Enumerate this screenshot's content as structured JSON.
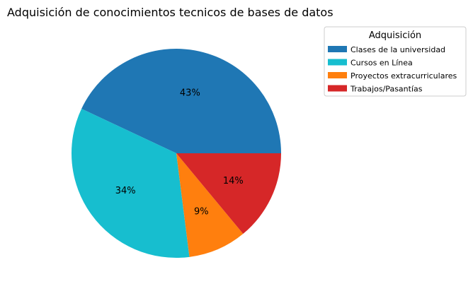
{
  "chart_data": {
    "type": "pie",
    "title": "Adquisición de conocimientos tecnicos de bases de datos",
    "legend_title": "Adquisición",
    "legend_position": "top-right",
    "start_angle_deg": 0,
    "direction": "counterclockwise",
    "slices": [
      {
        "label": "Clases de la universidad",
        "value": 43,
        "pct_label": "43%",
        "color": "#1f77b4"
      },
      {
        "label": "Cursos en Línea",
        "value": 34,
        "pct_label": "34%",
        "color": "#17becf"
      },
      {
        "label": "Proyectos extracurriculares",
        "value": 9,
        "pct_label": "9%",
        "color": "#ff7f0e"
      },
      {
        "label": "Trabajos/Pasantías",
        "value": 14,
        "pct_label": "14%",
        "color": "#d62728"
      }
    ]
  }
}
